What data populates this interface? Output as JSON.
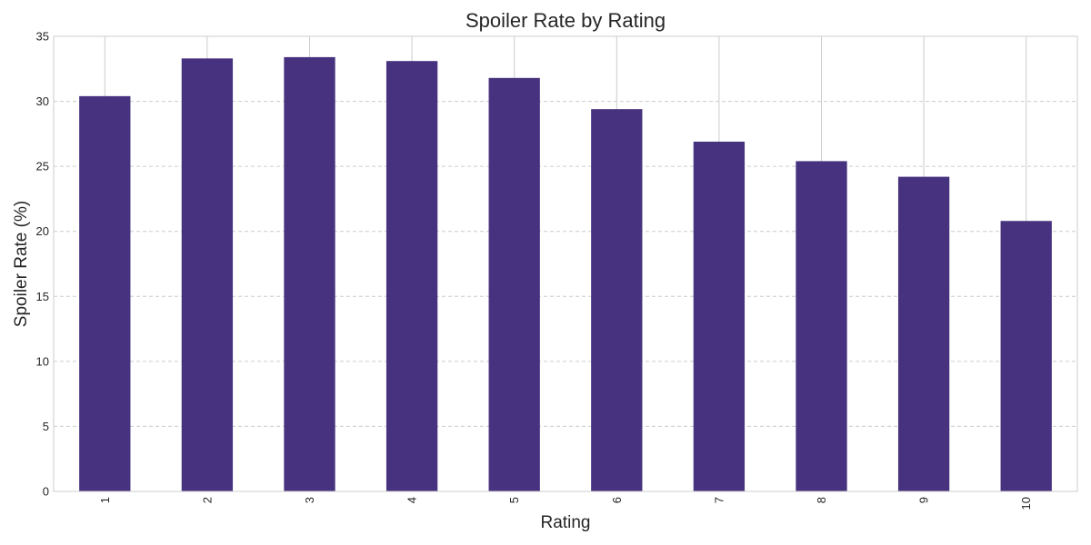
{
  "chart_data": {
    "type": "bar",
    "title": "Spoiler Rate by Rating",
    "xlabel": "Rating",
    "ylabel": "Spoiler Rate (%)",
    "categories": [
      "1",
      "2",
      "3",
      "4",
      "5",
      "6",
      "7",
      "8",
      "9",
      "10"
    ],
    "values": [
      30.4,
      33.3,
      33.4,
      33.1,
      31.8,
      29.4,
      26.9,
      25.4,
      24.2,
      20.8
    ],
    "ylim": [
      0,
      35
    ],
    "yticks": [
      0,
      5,
      10,
      15,
      20,
      25,
      30,
      35
    ],
    "grid": true,
    "legend": false,
    "xtick_rotation": "vertical",
    "colors": {
      "bar": "#46327e",
      "grid": "#cccccc",
      "spine": "#cccccc",
      "text": "#262626"
    }
  }
}
